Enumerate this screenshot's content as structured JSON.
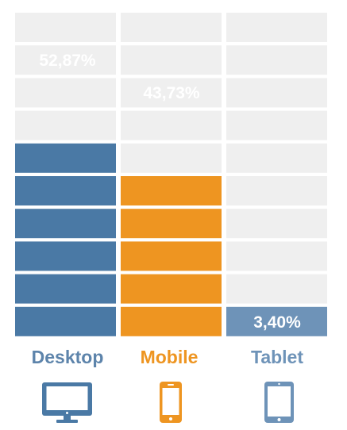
{
  "chart_data": {
    "type": "bar",
    "categories": [
      "Desktop",
      "Mobile",
      "Tablet"
    ],
    "values": [
      52.87,
      43.73,
      3.4
    ],
    "value_labels": [
      "52,87%",
      "43,73%",
      "3,40%"
    ],
    "icons": [
      "desktop-monitor-icon",
      "mobile-phone-icon",
      "tablet-icon"
    ],
    "colors": [
      "#4a79a5",
      "#ee9521",
      "#6e93b8"
    ],
    "label_colors": [
      "#5d84ab",
      "#ee9521",
      "#6e93b8"
    ],
    "empty_color": "#efefef",
    "ylim": [
      0,
      100
    ]
  }
}
